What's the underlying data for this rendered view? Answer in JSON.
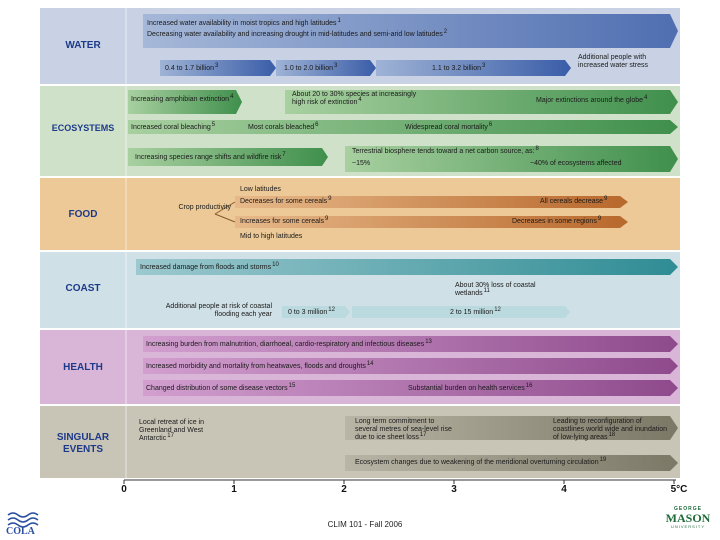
{
  "sectors": {
    "water": {
      "label": "WATER",
      "color": "#c8d2e4"
    },
    "ecosystems": {
      "label": "ECOSYSTEMS",
      "color": "#cfe2c9"
    },
    "food": {
      "label": "FOOD",
      "color": "#ecc997"
    },
    "coast": {
      "label": "COAST",
      "color": "#cfe0e6"
    },
    "health": {
      "label": "HEALTH",
      "color": "#d9b6d8"
    },
    "singular": {
      "label": "SINGULAR EVENTS",
      "color": "#c8c4b6"
    }
  },
  "water": {
    "a1": "Increased water availability in moist tropics and high latitudes",
    "a1n": "1",
    "a2": "Decreasing water availability and increasing drought in mid-latitudes and semi-arid low latitudes",
    "a2n": "2",
    "s1": "0.4 to 1.7 billion",
    "s1n": "3",
    "s2": "1.0 to 2.0 billion",
    "s2n": "3",
    "s3": "1.1 to 3.2 billion",
    "s3n": "3",
    "people": "Additional people with increased water stress"
  },
  "ecosystems": {
    "amph": "Increasing amphibian extinction",
    "amphn": "4",
    "risk": "About 20 to 30% species at increasingly high risk of extinction",
    "riskn": "4",
    "major": "Major extinctions around the globe",
    "majorn": "4",
    "coral1": "Increased coral bleaching",
    "coral1n": "5",
    "coral2": "Most corals bleached",
    "coral2n": "6",
    "coral3": "Widespread coral mortality",
    "coral3n": "6",
    "shift": "Increasing species range shifts and wildfire risk",
    "shiftn": "7",
    "bio1": "Terrestrial biosphere tends toward a net carbon source, as:",
    "bio1n": "8",
    "bio2": "~15%",
    "bio3": "~40% of ecosystems affected"
  },
  "food": {
    "low": "Low latitudes",
    "dec": "Decreases for some cereals",
    "decn": "9",
    "all": "All cereals decrease",
    "alln": "9",
    "crop": "Crop productivity",
    "inc": "Increases for some cereals",
    "incn": "9",
    "reg": "Decreases in some regions",
    "regn": "9",
    "mid": "Mid to high latitudes"
  },
  "coast": {
    "dmg": "Increased damage from floods and storms",
    "dmgn": "10",
    "wet": "About 30% loss of coastal wetlands",
    "wetn": "11",
    "add": "Additional people at risk of coastal flooding each year",
    "s1": "0 to 3 million",
    "s1n": "12",
    "s2": "2 to 15 million",
    "s2n": "12"
  },
  "health": {
    "h1": "Increasing burden from malnutrition, diarrhoeal, cardio-respiratory and infectious diseases",
    "h1n": "13",
    "h2": "Increased morbidity and mortality from heatwaves, floods and droughts",
    "h2n": "14",
    "h3": "Changed distribution of some disease vectors",
    "h3n": "15",
    "h4": "Substantial burden on health services",
    "h4n": "16"
  },
  "singular": {
    "ice": "Local retreat of ice in Greenland and West Antarctic",
    "icen": "17",
    "sea": "Long term commitment to several metres of sea-level rise due to ice sheet loss",
    "sean": "17",
    "reconf": "Leading to reconfiguration of coastlines world wide and inundation of low-lying areas",
    "reconfn": "18",
    "eco": "Ecosystem changes due to weakening of the meridional overturning circulation",
    "econ": "19"
  },
  "axis": {
    "ticks": [
      "0",
      "1",
      "2",
      "3",
      "4",
      "5°C"
    ]
  },
  "footer": {
    "course": "CLIM 101 - Fall 2006"
  },
  "logos": {
    "left": "COLA",
    "right_top": "GEORGE",
    "right_main": "MASON",
    "right_sub": "UNIVERSITY"
  }
}
